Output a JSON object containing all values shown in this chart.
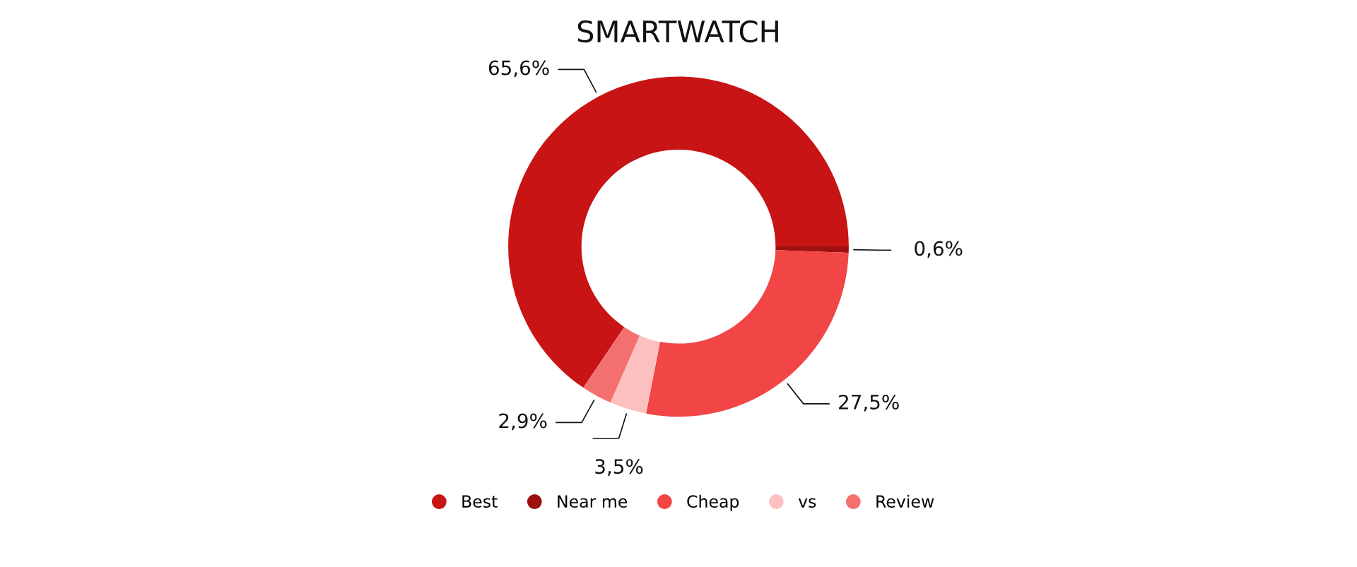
{
  "chart_data": {
    "type": "donut",
    "title": "SMARTWATCH",
    "categories": [
      "Best",
      "Near me",
      "Cheap",
      "vs",
      "Review"
    ],
    "values": [
      65.6,
      0.6,
      27.5,
      3.5,
      2.9
    ],
    "value_labels": [
      "65,6%",
      "0,6%",
      "27,5%",
      "3,5%",
      "2,9%"
    ],
    "colors": [
      "#c81414",
      "#9e1010",
      "#f24545",
      "#fdc0c0",
      "#f47070"
    ],
    "legend": "bottom"
  }
}
